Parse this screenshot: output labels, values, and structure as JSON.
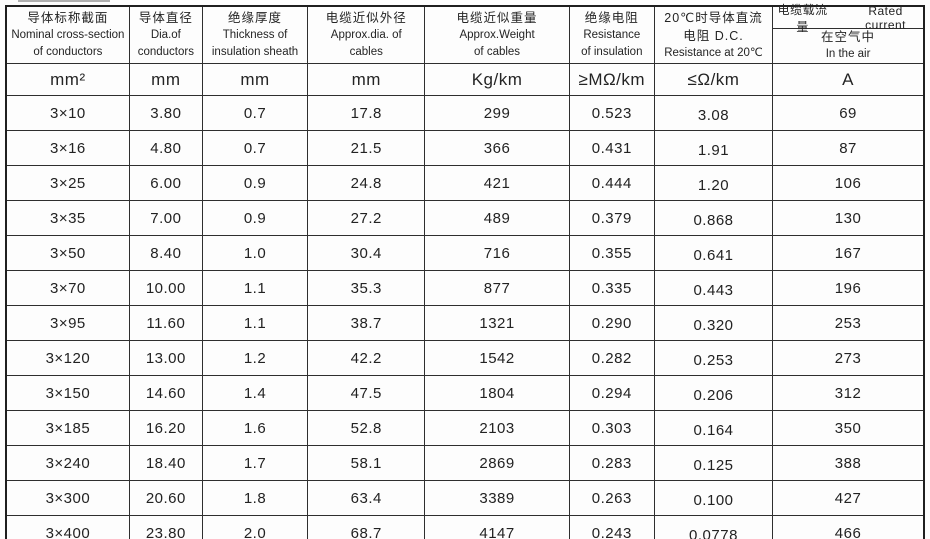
{
  "header": {
    "cols": [
      {
        "l1": "导体标称截面",
        "l2": "Nominal cross-section",
        "l3": "of conductors"
      },
      {
        "l1": "导体直径",
        "l2": "Dia.of",
        "l3": "conductors"
      },
      {
        "l1": "绝缘厚度",
        "l2": "Thickness of",
        "l3": "insulation sheath"
      },
      {
        "l1": "电缆近似外径",
        "l2": "Approx.dia. of",
        "l3": "cables"
      },
      {
        "l1": "电缆近似重量",
        "l2": "Approx.Weight",
        "l3": "of cables"
      },
      {
        "l1": "绝缘电阻",
        "l2": "Resistance",
        "l3": "of insulation"
      },
      {
        "l1": "20℃时导体直流",
        "l2": "电阻 D.C.",
        "l3": "Resistance at 20℃"
      }
    ],
    "rated": {
      "cn": "电缆载流量",
      "en": "Rated current",
      "sub_cn": "在空气中",
      "sub_en": "In the air"
    }
  },
  "units": [
    "mm²",
    "mm",
    "mm",
    "mm",
    "Kg/km",
    "≥MΩ/km",
    "≤Ω/km",
    "A"
  ],
  "rows": [
    [
      "3×10",
      "3.80",
      "0.7",
      "17.8",
      "299",
      "0.523",
      "3.08",
      "69"
    ],
    [
      "3×16",
      "4.80",
      "0.7",
      "21.5",
      "366",
      "0.431",
      "1.91",
      "87"
    ],
    [
      "3×25",
      "6.00",
      "0.9",
      "24.8",
      "421",
      "0.444",
      "1.20",
      "106"
    ],
    [
      "3×35",
      "7.00",
      "0.9",
      "27.2",
      "489",
      "0.379",
      "0.868",
      "130"
    ],
    [
      "3×50",
      "8.40",
      "1.0",
      "30.4",
      "716",
      "0.355",
      "0.641",
      "167"
    ],
    [
      "3×70",
      "10.00",
      "1.1",
      "35.3",
      "877",
      "0.335",
      "0.443",
      "196"
    ],
    [
      "3×95",
      "11.60",
      "1.1",
      "38.7",
      "1321",
      "0.290",
      "0.320",
      "253"
    ],
    [
      "3×120",
      "13.00",
      "1.2",
      "42.2",
      "1542",
      "0.282",
      "0.253",
      "273"
    ],
    [
      "3×150",
      "14.60",
      "1.4",
      "47.5",
      "1804",
      "0.294",
      "0.206",
      "312"
    ],
    [
      "3×185",
      "16.20",
      "1.6",
      "52.8",
      "2103",
      "0.303",
      "0.164",
      "350"
    ],
    [
      "3×240",
      "18.40",
      "1.7",
      "58.1",
      "2869",
      "0.283",
      "0.125",
      "388"
    ],
    [
      "3×300",
      "20.60",
      "1.8",
      "63.4",
      "3389",
      "0.263",
      "0.100",
      "427"
    ],
    [
      "3×400",
      "23.80",
      "2.0",
      "68.7",
      "4147",
      "0.243",
      "0.0778",
      "466"
    ]
  ]
}
